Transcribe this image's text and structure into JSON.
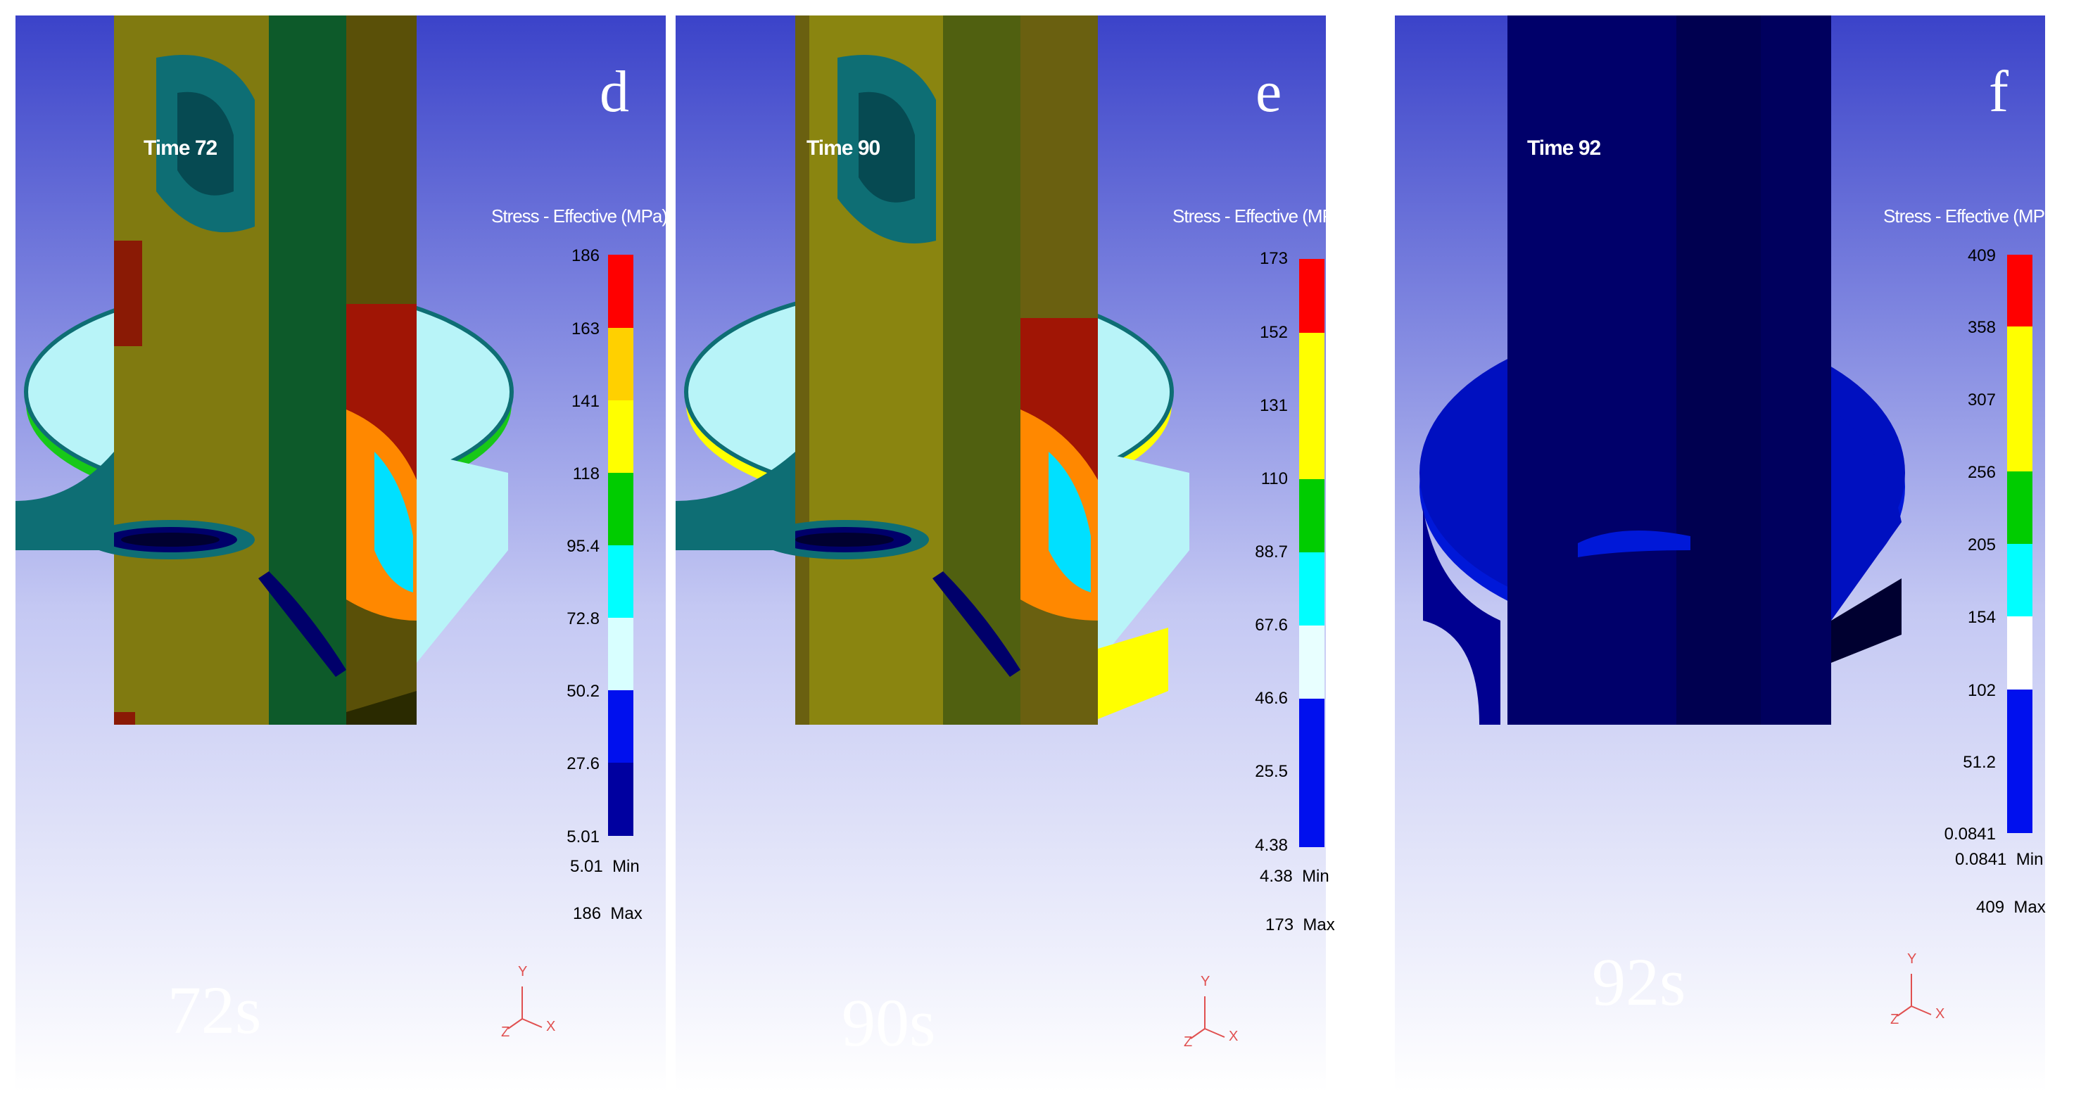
{
  "panels": [
    {
      "letter": "d",
      "time_label": "Time 72",
      "legend_title": "Stress - Effective (MPa)",
      "ticks": [
        "186",
        "163",
        "141",
        "118",
        "95.4",
        "72.8",
        "50.2",
        "27.6",
        "5.01"
      ],
      "min_value": "5.01",
      "min_label": "Min",
      "max_value": "186",
      "max_label": "Max",
      "big_time": "72s",
      "axis": {
        "y": "Y",
        "x": "X",
        "z": "Z"
      }
    },
    {
      "letter": "e",
      "time_label": "Time 90",
      "legend_title": "Stress - Effective (MPa)",
      "ticks": [
        "173",
        "152",
        "131",
        "110",
        "88.7",
        "67.6",
        "46.6",
        "25.5",
        "4.38"
      ],
      "min_value": "4.38",
      "min_label": "Min",
      "max_value": "173",
      "max_label": "Max",
      "big_time": "90s",
      "axis": {
        "y": "Y",
        "x": "X",
        "z": "Z"
      }
    },
    {
      "letter": "f",
      "time_label": "Time 92",
      "legend_title": "Stress - Effective (MPa)",
      "ticks": [
        "409",
        "358",
        "307",
        "256",
        "205",
        "154",
        "102",
        "51.2",
        "0.0841"
      ],
      "min_value": "0.0841",
      "min_label": "Min",
      "max_value": "409",
      "max_label": "Max",
      "big_time": "92s",
      "axis": {
        "y": "Y",
        "x": "X",
        "z": "Z"
      }
    }
  ],
  "colors": {
    "red": "#ff0000",
    "orange_yellow": "#ffd000",
    "yellow": "#ffff00",
    "green": "#00cc00",
    "cyan": "#00ffff",
    "light_cyan": "#d8ffff",
    "blue": "#0010ee",
    "dark_blue": "#0000a0",
    "olive": "#807a10",
    "teal": "#0e6e74",
    "dark_red": "#8a1a05",
    "navy": "#00005a"
  }
}
